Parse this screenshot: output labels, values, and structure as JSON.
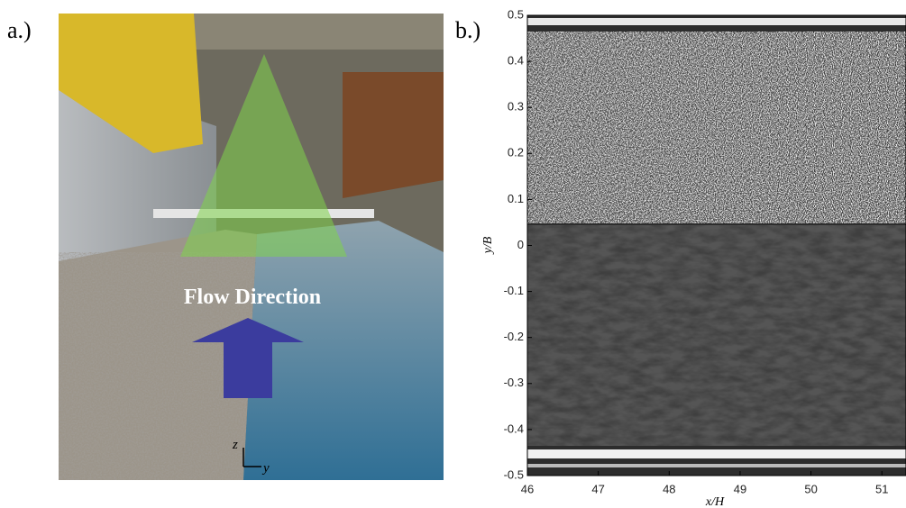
{
  "panel_a": {
    "label": "a.)",
    "annotation": "Flow Direction",
    "axis_vertical": "z",
    "axis_horizontal": "y"
  },
  "panel_b": {
    "label": "b.)",
    "xlabel": "x/H",
    "ylabel": "y/B",
    "xlim": [
      46,
      51.34
    ],
    "ylim": [
      -0.5,
      0.5
    ],
    "xticks": [
      46,
      47,
      48,
      49,
      50,
      51
    ],
    "yticks": [
      0.5,
      0.4,
      0.3,
      0.2,
      0.1,
      0,
      -0.1,
      -0.2,
      -0.3,
      -0.4,
      -0.5
    ]
  }
}
